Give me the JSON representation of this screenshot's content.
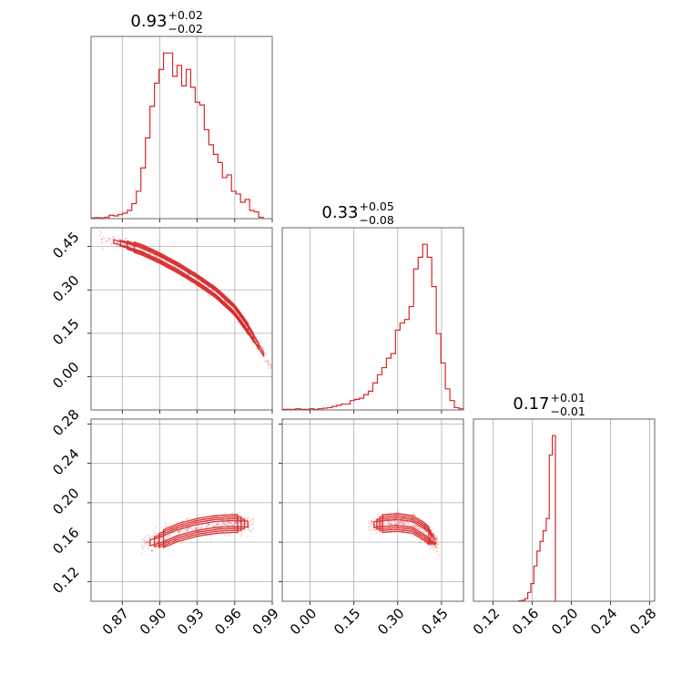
{
  "chart_data": {
    "type": "corner",
    "color": "#d62728",
    "grid": true,
    "axis_ticks": {
      "p0": [
        "0.87",
        "0.90",
        "0.93",
        "0.96",
        "0.99"
      ],
      "p1": [
        "0.00",
        "0.15",
        "0.30",
        "0.45"
      ],
      "p2": [
        "0.12",
        "0.16",
        "0.20",
        "0.24",
        "0.28"
      ]
    },
    "panels": [
      {
        "id": "hist-p0",
        "type": "histogram",
        "param": "p0",
        "title": {
          "value": "0.93",
          "upper": "+0.02",
          "lower": "−0.02"
        },
        "xlim": [
          0.845,
          0.99
        ],
        "bin_edges": [
          0.845,
          0.95,
          0.99
        ],
        "bins": {
          "start": 0.845,
          "width": 0.003625,
          "counts": [
            0.5,
            0.8,
            0.5,
            1,
            2.5,
            2,
            3,
            4,
            6,
            11,
            20,
            37,
            59,
            82,
            99,
            109,
            121,
            121,
            104,
            112,
            97,
            109,
            96,
            85,
            83,
            65,
            54,
            47,
            41,
            30,
            32,
            20,
            18,
            12,
            14,
            6,
            5,
            1
          ]
        }
      },
      {
        "id": "hist-p1",
        "type": "histogram",
        "param": "p1",
        "title": {
          "value": "0.33",
          "upper": "+0.05",
          "lower": "−0.08"
        },
        "xlim": [
          -0.095,
          0.525
        ],
        "bins": {
          "start": -0.095,
          "width": 0.0155,
          "counts": [
            0.5,
            0.5,
            0.5,
            1,
            0.5,
            0.5,
            1,
            0.5,
            1,
            1.5,
            2,
            3,
            4,
            5,
            5,
            8,
            9,
            10,
            13,
            16,
            23,
            30,
            36,
            44,
            48,
            68,
            74,
            77,
            88,
            120,
            130,
            141,
            130,
            105,
            65,
            40,
            18,
            8,
            2,
            1
          ]
        }
      },
      {
        "id": "hist-p2",
        "type": "histogram",
        "param": "p2",
        "title": {
          "value": "0.17",
          "upper": "+0.01",
          "lower": "−0.01"
        },
        "xlim": [
          0.1,
          0.285
        ],
        "bins": {
          "start": 0.146,
          "width": 0.00314,
          "counts": [
            0.5,
            1,
            3,
            10,
            20,
            40,
            57,
            68,
            80,
            94,
            166,
            188
          ]
        }
      },
      {
        "id": "scatter-p0-p1",
        "type": "contour-scatter",
        "x": "p0",
        "y": "p1",
        "xlim": [
          0.845,
          0.99
        ],
        "ylim": [
          -0.115,
          0.515
        ],
        "ridge": [
          [
            0.852,
            0.48
          ],
          [
            0.87,
            0.46
          ],
          [
            0.885,
            0.44
          ],
          [
            0.9,
            0.41
          ],
          [
            0.915,
            0.375
          ],
          [
            0.93,
            0.335
          ],
          [
            0.945,
            0.29
          ],
          [
            0.96,
            0.23
          ],
          [
            0.97,
            0.17
          ],
          [
            0.98,
            0.1
          ],
          [
            0.99,
            0.03
          ]
        ],
        "contour_bands": [
          0.006,
          0.01,
          0.014,
          0.018
        ]
      },
      {
        "id": "scatter-p0-p2",
        "type": "contour-scatter",
        "x": "p0",
        "y": "p2",
        "xlim": [
          0.845,
          0.99
        ],
        "ylim": [
          0.1,
          0.285
        ],
        "ridge": [
          [
            0.885,
            0.157
          ],
          [
            0.9,
            0.162
          ],
          [
            0.915,
            0.17
          ],
          [
            0.93,
            0.175
          ],
          [
            0.945,
            0.178
          ],
          [
            0.96,
            0.179
          ],
          [
            0.975,
            0.178
          ]
        ],
        "contour_bands": [
          0.003,
          0.005,
          0.007,
          0.009
        ]
      },
      {
        "id": "scatter-p1-p2",
        "type": "contour-scatter",
        "x": "p1",
        "y": "p2",
        "xlim": [
          -0.095,
          0.525
        ],
        "ylim": [
          0.1,
          0.285
        ],
        "ridge": [
          [
            0.2,
            0.177
          ],
          [
            0.25,
            0.179
          ],
          [
            0.3,
            0.18
          ],
          [
            0.35,
            0.178
          ],
          [
            0.39,
            0.171
          ],
          [
            0.42,
            0.163
          ],
          [
            0.44,
            0.157
          ]
        ],
        "contour_bands": [
          0.003,
          0.005,
          0.007,
          0.009
        ]
      }
    ]
  }
}
